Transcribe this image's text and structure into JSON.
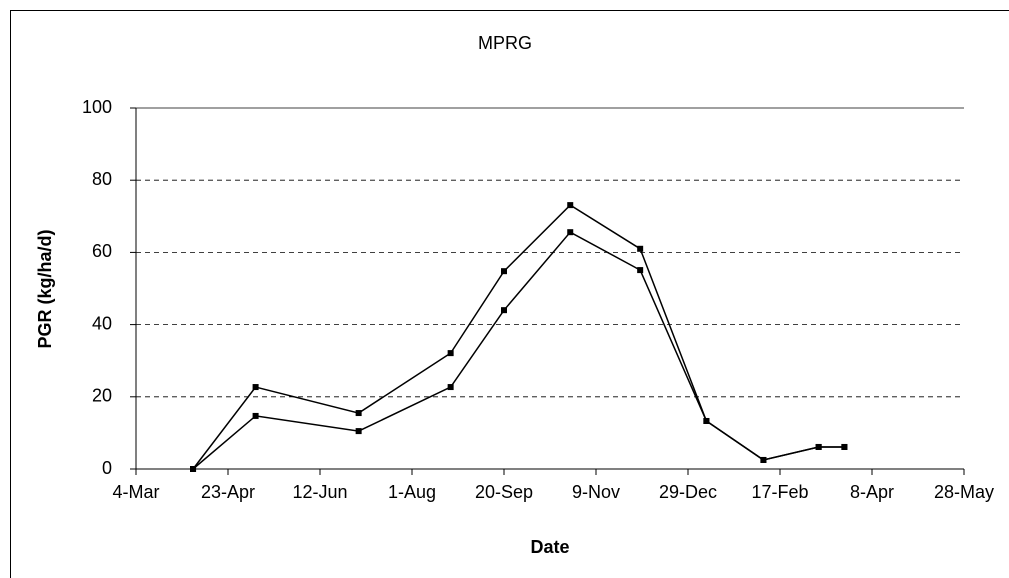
{
  "chart_data": {
    "type": "line",
    "title": "MPRG",
    "x_label": "Date",
    "y_label": "PGR (kg/ha/d)",
    "xlim": [
      0,
      450
    ],
    "xticks": [
      {
        "value": 0,
        "label": "4-Mar"
      },
      {
        "value": 50,
        "label": "23-Apr"
      },
      {
        "value": 100,
        "label": "12-Jun"
      },
      {
        "value": 150,
        "label": "1-Aug"
      },
      {
        "value": 200,
        "label": "20-Sep"
      },
      {
        "value": 250,
        "label": "9-Nov"
      },
      {
        "value": 300,
        "label": "29-Dec"
      },
      {
        "value": 350,
        "label": "17-Feb"
      },
      {
        "value": 400,
        "label": "8-Apr"
      },
      {
        "value": 450,
        "label": "28-May"
      }
    ],
    "ylim": [
      0,
      100
    ],
    "yticks": [
      0,
      20,
      40,
      60,
      80,
      100
    ],
    "grid": true,
    "x": [
      31,
      65,
      121,
      171,
      200,
      236,
      274,
      310,
      341,
      371,
      385
    ],
    "series": [
      {
        "color": "#000000",
        "values": [
          0,
          22.7,
          15.5,
          32.1,
          54.8,
          73.1,
          61,
          13.3,
          2.5,
          6.1,
          6.1
        ]
      },
      {
        "color": "#000000",
        "values": [
          0,
          14.7,
          10.5,
          22.7,
          44,
          65.6,
          55.1,
          13.3,
          2.5,
          6.1,
          6.1
        ]
      }
    ]
  }
}
